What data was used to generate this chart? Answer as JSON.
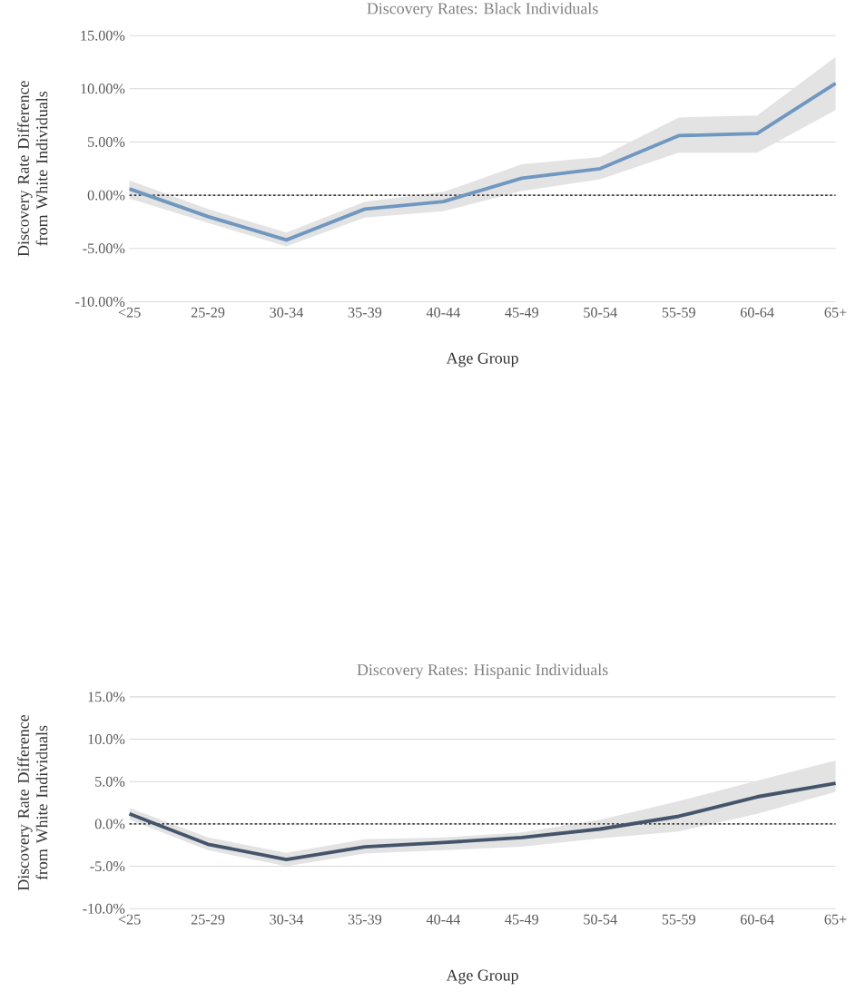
{
  "chart_data": [
    {
      "type": "line",
      "title": "Discovery Rates: Black Individuals",
      "xlabel": "Age Group",
      "ylabel": "Discovery Rate Difference from White Individuals",
      "categories": [
        "<25",
        "25-29",
        "30-34",
        "35-39",
        "40-44",
        "45-49",
        "50-54",
        "55-59",
        "60-64",
        "65+"
      ],
      "series": [
        {
          "color": "#7097c0",
          "values": [
            0.6,
            -2.0,
            -4.2,
            -1.3,
            -0.6,
            1.6,
            2.5,
            5.6,
            5.8,
            10.5
          ],
          "lower": [
            -0.3,
            -2.6,
            -4.8,
            -2.1,
            -1.5,
            0.4,
            1.5,
            4.0,
            4.0,
            8.0
          ],
          "upper": [
            1.4,
            -1.3,
            -3.5,
            -0.6,
            0.3,
            2.9,
            3.6,
            7.3,
            7.5,
            13.0
          ]
        }
      ],
      "ylim": [
        -10,
        15
      ],
      "yticks": [
        {
          "value": -10,
          "label": "-10.00%"
        },
        {
          "value": -5,
          "label": "-5.00%"
        },
        {
          "value": 0,
          "label": "0.00%"
        },
        {
          "value": 5,
          "label": "5.00%"
        },
        {
          "value": 10,
          "label": "10.00%"
        },
        {
          "value": 15,
          "label": "15.00%"
        }
      ],
      "grid": "y",
      "ref_lines": [
        {
          "axis": "y",
          "value": 0,
          "color": "#000000",
          "line_style": "dashed"
        }
      ]
    },
    {
      "type": "line",
      "title": "Discovery Rates: Hispanic Individuals",
      "xlabel": "Age Group",
      "ylabel": "Discovery Rate Difference from White Individuals",
      "categories": [
        "<25",
        "25-29",
        "30-34",
        "35-39",
        "40-44",
        "45-49",
        "50-54",
        "55-59",
        "60-64",
        "65+"
      ],
      "series": [
        {
          "color": "#44546a",
          "values": [
            1.2,
            -2.4,
            -4.2,
            -2.7,
            -2.2,
            -1.6,
            -0.6,
            0.9,
            3.2,
            4.8
          ],
          "lower": [
            0.5,
            -3.1,
            -5.0,
            -3.5,
            -3.1,
            -2.7,
            -1.7,
            -0.9,
            1.2,
            3.8
          ],
          "upper": [
            1.9,
            -1.6,
            -3.4,
            -1.8,
            -1.6,
            -1.0,
            0.5,
            2.7,
            5.1,
            7.5
          ]
        }
      ],
      "ylim": [
        -10,
        15
      ],
      "yticks": [
        {
          "value": -10,
          "label": "-10.0%"
        },
        {
          "value": -5,
          "label": "-5.0%"
        },
        {
          "value": 0,
          "label": "0.0%"
        },
        {
          "value": 5,
          "label": "5.0%"
        },
        {
          "value": 10,
          "label": "10.0%"
        },
        {
          "value": 15,
          "label": "15.0%"
        }
      ],
      "grid": "y",
      "ref_lines": [
        {
          "axis": "y",
          "value": 0,
          "color": "#000000",
          "line_style": "dashed"
        }
      ]
    }
  ]
}
